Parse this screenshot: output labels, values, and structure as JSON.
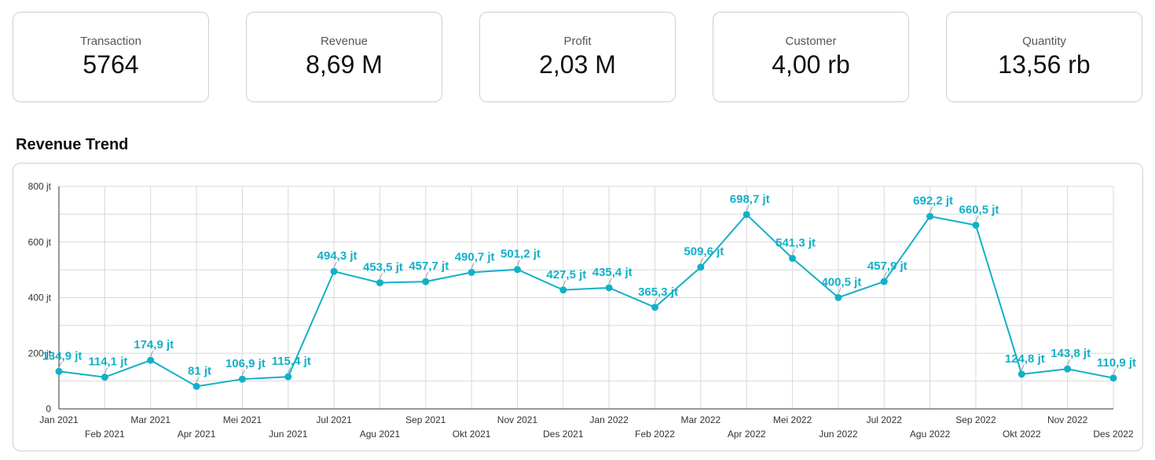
{
  "kpis": [
    {
      "label": "Transaction",
      "value": "5764"
    },
    {
      "label": "Revenue",
      "value": "8,69 M"
    },
    {
      "label": "Profit",
      "value": "2,03 M"
    },
    {
      "label": "Customer",
      "value": "4,00 rb"
    },
    {
      "label": "Quantity",
      "value": "13,56 rb"
    }
  ],
  "section_title": "Revenue Trend",
  "colors": {
    "line": "#12b0c8",
    "grid": "#d9d9d9",
    "axis": "#333333"
  },
  "chart_data": {
    "type": "line",
    "title": "Revenue Trend",
    "xlabel": "",
    "ylabel": "",
    "ylim": [
      0,
      800
    ],
    "yticks": [
      {
        "value": 0,
        "label": "0"
      },
      {
        "value": 200,
        "label": "200 jt"
      },
      {
        "value": 400,
        "label": "400 jt"
      },
      {
        "value": 600,
        "label": "600 jt"
      },
      {
        "value": 800,
        "label": "800 jt"
      }
    ],
    "categories": [
      "Jan 2021",
      "Feb 2021",
      "Mar 2021",
      "Apr 2021",
      "Mei 2021",
      "Jun 2021",
      "Jul 2021",
      "Agu 2021",
      "Sep 2021",
      "Okt 2021",
      "Nov 2021",
      "Des 2021",
      "Jan 2022",
      "Feb 2022",
      "Mar 2022",
      "Apr 2022",
      "Mei 2022",
      "Jun 2022",
      "Jul 2022",
      "Agu 2022",
      "Sep 2022",
      "Okt 2022",
      "Nov 2022",
      "Des 2022"
    ],
    "series": [
      {
        "name": "Revenue",
        "values": [
          134.9,
          114.1,
          174.9,
          81,
          106.9,
          115.4,
          494.3,
          453.5,
          457.7,
          490.7,
          501.2,
          427.5,
          435.4,
          365.3,
          509.6,
          698.7,
          541.3,
          400.5,
          457.9,
          692.2,
          660.5,
          124.8,
          143.8,
          110.9
        ],
        "labels": [
          "134,9 jt",
          "114,1 jt",
          "174,9 jt",
          "81 jt",
          "106,9 jt",
          "115,4 jt",
          "494,3 jt",
          "453,5 jt",
          "457,7 jt",
          "490,7 jt",
          "501,2 jt",
          "427,5 jt",
          "435,4 jt",
          "365,3 jt",
          "509,6 jt",
          "698,7 jt",
          "541,3 jt",
          "400,5 jt",
          "457,9 jt",
          "692,2 jt",
          "660,5 jt",
          "124,8 jt",
          "143,8 jt",
          "110,9 jt"
        ]
      }
    ],
    "grid": true
  }
}
